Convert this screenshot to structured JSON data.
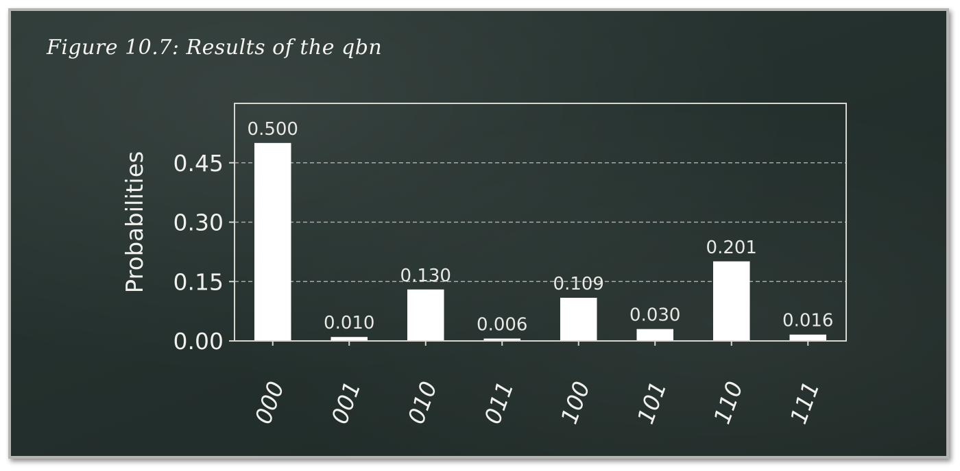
{
  "caption": "Figure 10.7: Results of the qbn",
  "colors": {
    "board": "#24302d",
    "bar": "#ffffff",
    "text": "#f0f0ec",
    "grid": "#c8c8c4"
  },
  "chart_data": {
    "type": "bar",
    "categories": [
      "000",
      "001",
      "010",
      "011",
      "100",
      "101",
      "110",
      "111"
    ],
    "values": [
      0.5,
      0.01,
      0.13,
      0.006,
      0.109,
      0.03,
      0.201,
      0.016
    ],
    "value_labels": [
      "0.500",
      "0.010",
      "0.130",
      "0.006",
      "0.109",
      "0.030",
      "0.201",
      "0.016"
    ],
    "ylabel": "Probabilities",
    "xlabel": "",
    "ylim": [
      0,
      0.6
    ],
    "yticks": [
      0,
      0.15,
      0.3,
      0.45
    ],
    "ytick_labels": [
      "0.00",
      "0.15",
      "0.30",
      "0.45"
    ],
    "grid": "horizontal dashed",
    "xtick_rotation": "70 degrees"
  }
}
